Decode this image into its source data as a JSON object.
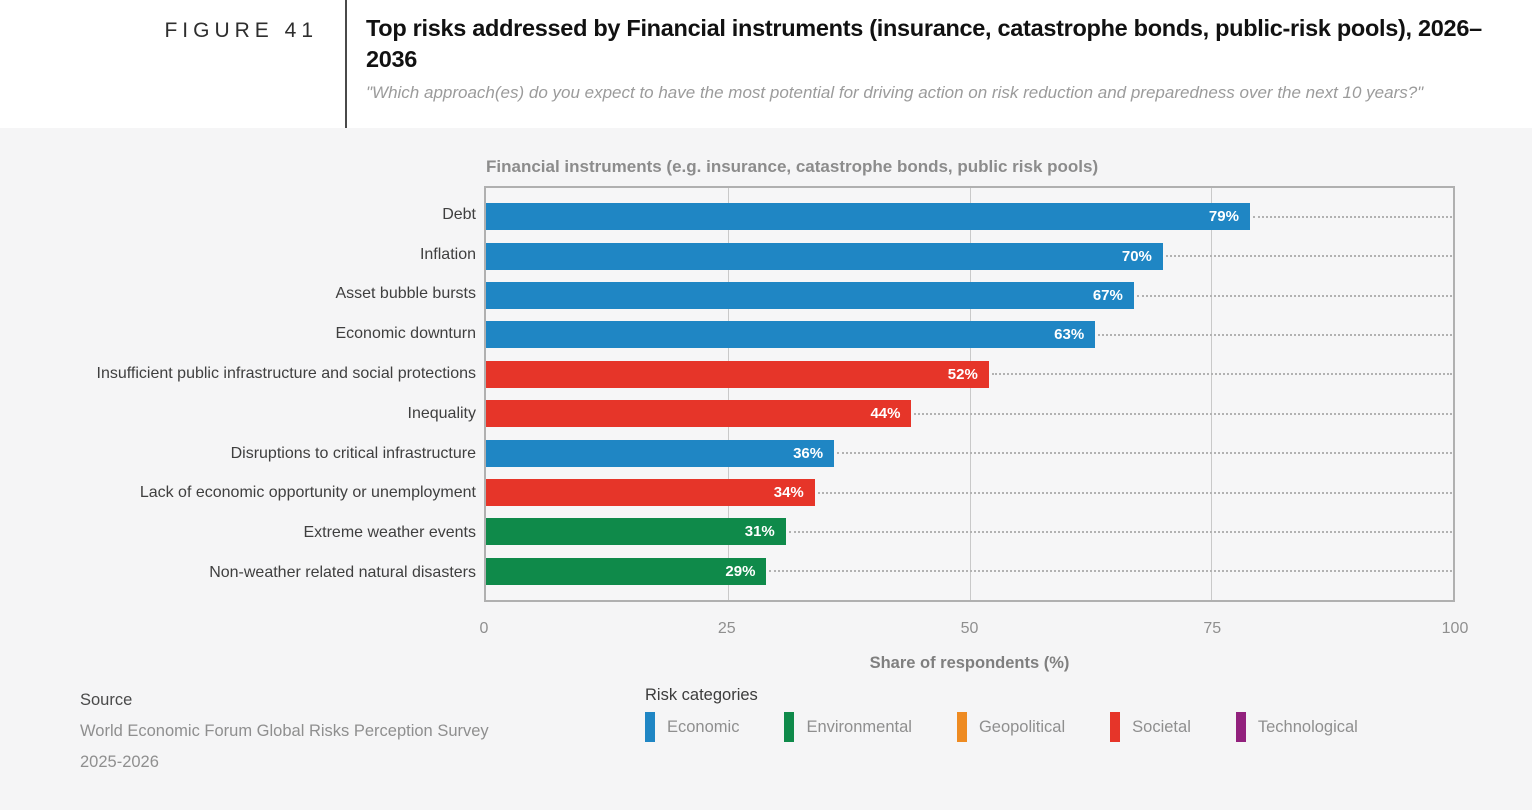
{
  "figure": {
    "label": "FIGURE 41",
    "title": "Top risks addressed by Financial instruments (insurance, catastrophe bonds, public-risk pools), 2026–2036",
    "subtitle": "\"Which approach(es) do you expect to have the most potential for driving action on risk reduction and preparedness over the next 10 years?\""
  },
  "chart_data": {
    "type": "bar",
    "orientation": "horizontal",
    "title": "Financial instruments (e.g. insurance, catastrophe bonds, public risk pools)",
    "categories": [
      "Debt",
      "Inflation",
      "Asset bubble bursts",
      "Economic downturn",
      "Insufficient public infrastructure and social protections",
      "Inequality",
      "Disruptions to critical infrastructure",
      "Lack of economic opportunity or unemployment",
      "Extreme weather events",
      "Non-weather related natural disasters"
    ],
    "values": [
      79,
      70,
      67,
      63,
      52,
      44,
      36,
      34,
      31,
      29
    ],
    "bar_categories": [
      "economic",
      "economic",
      "economic",
      "economic",
      "societal",
      "societal",
      "economic",
      "societal",
      "environmental",
      "environmental"
    ],
    "value_suffix": "%",
    "xlabel": "Share of respondents (%)",
    "xlim": [
      0,
      100
    ],
    "xticks": [
      0,
      25,
      50,
      75,
      100
    ],
    "grid": "vertical-gridlines-on",
    "legend_position": "bottom",
    "colors": {
      "economic": "#1f86c4",
      "environmental": "#0f8a4a",
      "geopolitical": "#ee8b22",
      "societal": "#e63529",
      "technological": "#92217d"
    }
  },
  "source": {
    "heading": "Source",
    "line1": "World Economic Forum Global Risks Perception Survey",
    "line2": "2025-2026"
  },
  "legend": {
    "heading": "Risk categories",
    "items": [
      {
        "label": "Economic",
        "key": "economic"
      },
      {
        "label": "Environmental",
        "key": "environmental"
      },
      {
        "label": "Geopolitical",
        "key": "geopolitical"
      },
      {
        "label": "Societal",
        "key": "societal"
      },
      {
        "label": "Technological",
        "key": "technological"
      }
    ]
  }
}
